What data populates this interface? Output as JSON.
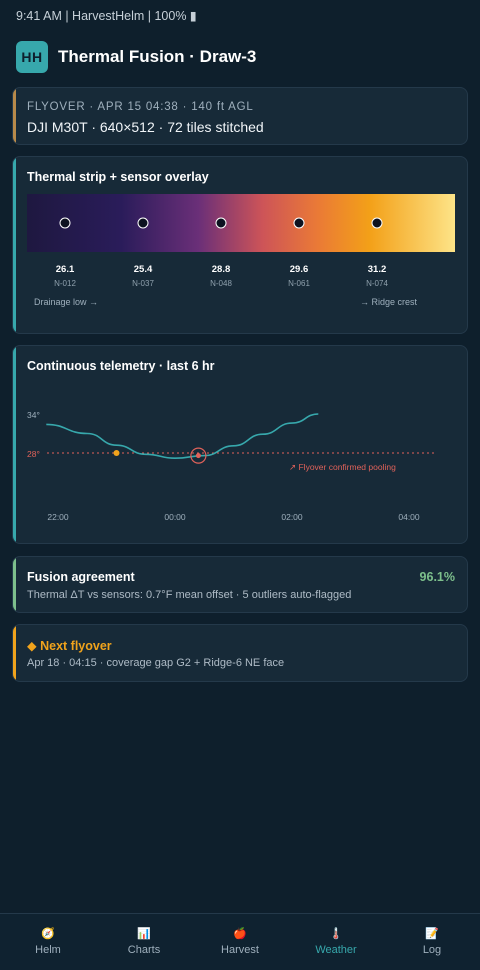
{
  "status_bar": {
    "text": "9:41 AM | HarvestHelm | 100% ▮"
  },
  "header": {
    "logo_text": "HH",
    "title": "Thermal Fusion · Draw-3"
  },
  "flyover": {
    "meta": "FLYOVER · APR 15 04:38 · 140 ft AGL",
    "device": "DJI M30T · 640×512 · 72 tiles stitched"
  },
  "thermal_strip": {
    "title": "Thermal strip + sensor overlay",
    "low_label": "Drainage low →",
    "high_label": "→ Ridge crest",
    "sensors": [
      {
        "value": "26.1",
        "id": "N-012"
      },
      {
        "value": "25.4",
        "id": "N-037"
      },
      {
        "value": "28.8",
        "id": "N-048"
      },
      {
        "value": "29.6",
        "id": "N-061"
      },
      {
        "value": "31.2",
        "id": "N-074"
      }
    ]
  },
  "telemetry": {
    "title": "Continuous telemetry · last 6 hr",
    "y_labels": [
      "34°",
      "28°"
    ],
    "x_labels": [
      "22:00",
      "00:00",
      "02:00",
      "04:00"
    ],
    "annotation": "↗ Flyover confirmed pooling",
    "threshold_color": "#e0625a",
    "line_color": "#37a8ac"
  },
  "chart_data": {
    "type": "line",
    "title": "Continuous telemetry · last 6 hr",
    "xlabel": "",
    "ylabel": "",
    "x": [
      -0.2,
      0.5,
      1.0,
      1.5,
      2.0,
      2.5,
      3.0,
      3.5,
      4.0,
      4.45
    ],
    "series": [
      {
        "values": [
          32.4,
          31.0,
          29.2,
          27.8,
          27.2,
          27.6,
          29.1,
          30.9,
          32.6,
          34.0
        ]
      }
    ],
    "threshold": 28,
    "marked_points": [
      {
        "x": 1.0,
        "y": 28.0
      },
      {
        "x": 2.4,
        "y": 27.6
      }
    ],
    "x_ticks": [
      "22:00",
      "00:00",
      "02:00",
      "04:00"
    ],
    "y_ticks": [
      "34°",
      "28°"
    ],
    "ylim": [
      24.5,
      34
    ],
    "grid": false
  },
  "fusion": {
    "title": "Fusion agreement",
    "value": "96.1%",
    "desc": "Thermal ΔT vs sensors: 0.7°F mean offset · 5 outliers auto-flagged"
  },
  "next_flyover": {
    "title": "◆ Next flyover",
    "desc": "Apr 18 · 04:15 · coverage gap G2 + Ridge-6 NE face"
  },
  "nav": {
    "items": [
      {
        "icon": "🧭",
        "label": "Helm"
      },
      {
        "icon": "📊",
        "label": "Charts"
      },
      {
        "icon": "🍎",
        "label": "Harvest"
      },
      {
        "icon": "🌡️",
        "label": "Weather"
      },
      {
        "icon": "📝",
        "label": "Log"
      }
    ],
    "active_index": 3
  }
}
